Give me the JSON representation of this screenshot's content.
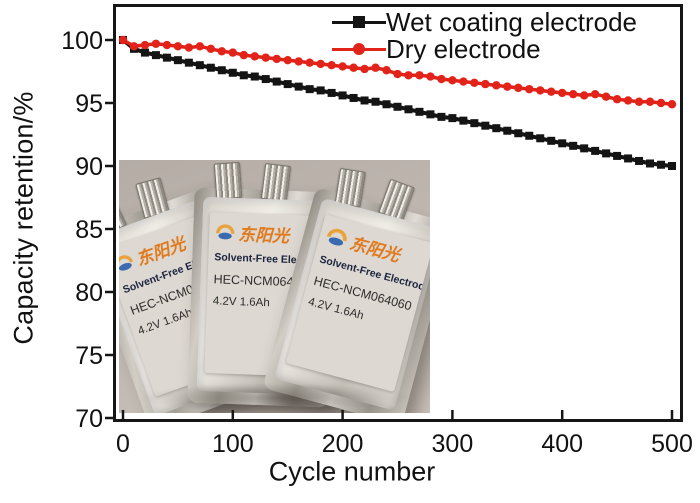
{
  "chart_data": {
    "type": "line",
    "title": "",
    "xlabel": "Cycle number",
    "ylabel": "Capacity retention/%",
    "xlim": [
      0,
      500
    ],
    "ylim": [
      70,
      103
    ],
    "x_ticks": [
      0,
      100,
      200,
      300,
      400,
      500
    ],
    "y_ticks": [
      70,
      75,
      80,
      85,
      90,
      95,
      100
    ],
    "grid": false,
    "legend_position": "top-right-inside",
    "x": [
      0,
      10,
      20,
      30,
      40,
      50,
      60,
      70,
      80,
      90,
      100,
      110,
      120,
      130,
      140,
      150,
      160,
      170,
      180,
      190,
      200,
      210,
      220,
      230,
      240,
      250,
      260,
      270,
      280,
      290,
      300,
      310,
      320,
      330,
      340,
      350,
      360,
      370,
      380,
      390,
      400,
      410,
      420,
      430,
      440,
      450,
      460,
      470,
      480,
      490,
      500
    ],
    "series": [
      {
        "name": "Wet coating electrode",
        "color": "#141414",
        "marker": "square",
        "values": [
          100.0,
          99.3,
          99.0,
          98.8,
          98.6,
          98.4,
          98.2,
          98.0,
          97.8,
          97.6,
          97.4,
          97.2,
          97.1,
          96.9,
          96.7,
          96.5,
          96.3,
          96.1,
          96.0,
          95.8,
          95.6,
          95.4,
          95.2,
          95.1,
          94.9,
          94.7,
          94.5,
          94.3,
          94.1,
          93.9,
          93.8,
          93.6,
          93.4,
          93.2,
          93.0,
          92.8,
          92.6,
          92.4,
          92.2,
          92.0,
          91.8,
          91.6,
          91.4,
          91.2,
          91.0,
          90.8,
          90.6,
          90.4,
          90.2,
          90.1,
          90.0
        ]
      },
      {
        "name": "Dry electrode",
        "color": "#e2231a",
        "marker": "circle",
        "values": [
          100.0,
          99.5,
          99.6,
          99.7,
          99.6,
          99.5,
          99.4,
          99.5,
          99.3,
          99.1,
          99.0,
          98.8,
          98.7,
          98.6,
          98.5,
          98.4,
          98.3,
          98.2,
          98.1,
          98.0,
          97.9,
          97.8,
          97.7,
          97.8,
          97.6,
          97.3,
          97.2,
          97.2,
          97.1,
          96.9,
          96.8,
          96.7,
          96.6,
          96.5,
          96.4,
          96.3,
          96.2,
          96.1,
          96.0,
          95.9,
          95.8,
          95.7,
          95.6,
          95.7,
          95.5,
          95.3,
          95.2,
          95.1,
          95.1,
          95.0,
          94.9
        ]
      }
    ]
  },
  "inset": {
    "description": "photo of three solvent-free pouch cells",
    "label": {
      "brand": "东阳光",
      "line1": "Solvent-Free Electrode",
      "line2": "HEC-NCM064060",
      "line3": "4.2V 1.6Ah"
    }
  }
}
